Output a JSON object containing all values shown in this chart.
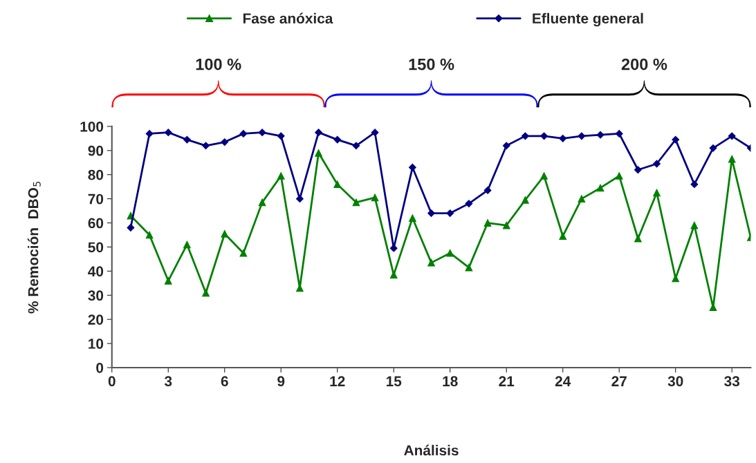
{
  "chart_data": {
    "type": "line",
    "xlabel": "Análisis",
    "ylabel": "% Remoción  DBO$_{5}$",
    "x": [
      1,
      2,
      3,
      4,
      5,
      6,
      7,
      8,
      9,
      10,
      11,
      12,
      13,
      14,
      15,
      16,
      17,
      18,
      19,
      20,
      21,
      22,
      23,
      24,
      25,
      26,
      27,
      28,
      29,
      30,
      31,
      32,
      33,
      34
    ],
    "series": [
      {
        "name": "Fase anóxica",
        "color": "#008000",
        "marker": "triangle",
        "values": [
          63,
          55,
          36,
          51,
          31,
          55.5,
          47.5,
          68.5,
          79.5,
          33,
          89,
          76,
          68.5,
          70.5,
          38.5,
          62,
          43.5,
          47.5,
          41.5,
          60,
          59,
          69.5,
          79.5,
          54.5,
          70,
          74.5,
          79.5,
          53.5,
          72.5,
          37,
          59,
          25,
          86.5,
          54
        ]
      },
      {
        "name": "Efluente general",
        "color": "#000080",
        "marker": "diamond",
        "values": [
          58,
          97,
          97.5,
          94.5,
          92,
          93.5,
          97,
          97.5,
          96,
          70,
          97.5,
          94.5,
          92,
          97.5,
          49.5,
          83,
          64,
          64,
          68,
          73.5,
          92,
          96,
          96,
          95,
          96,
          96.5,
          97,
          82,
          84.5,
          94.5,
          76,
          91,
          96,
          91
        ]
      }
    ],
    "xlim": [
      0,
      34
    ],
    "xticks": [
      0,
      3,
      6,
      9,
      12,
      15,
      18,
      21,
      24,
      27,
      30,
      33
    ],
    "ylim": [
      0,
      100
    ],
    "yticks": [
      0,
      10,
      20,
      30,
      40,
      50,
      60,
      70,
      80,
      90,
      100
    ],
    "annotations": [
      "100 %",
      "150 %",
      "200 %"
    ],
    "legend": "top",
    "grid": false,
    "line_style": "solid"
  }
}
